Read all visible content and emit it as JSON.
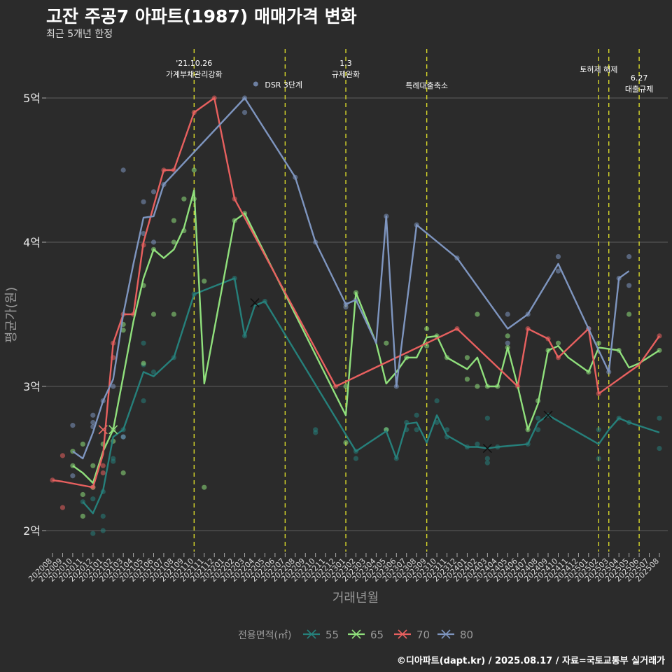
{
  "title": "고잔 주공7 아파트(1987) 매매가격 변화",
  "subtitle": "최근 5개년 한정",
  "caption": "©디아파트(dapt.kr) / 2025.08.17 / 자료=국토교통부 실거래가",
  "colors": {
    "55": "#26807b",
    "65": "#90e07c",
    "70": "#e8605f",
    "80": "#7e95bf",
    "vline": "#d9d92a"
  },
  "chart_data": {
    "type": "line",
    "xlabel": "거래년월",
    "ylabel": "평균가(원)",
    "ylim": [
      1.85,
      5.25
    ],
    "yticks": [
      {
        "v": 2,
        "label": "2억"
      },
      {
        "v": 3,
        "label": "3억"
      },
      {
        "v": 4,
        "label": "4억"
      },
      {
        "v": 5,
        "label": "5억"
      }
    ],
    "x_labels": [
      "202008",
      "202009",
      "202010",
      "202011",
      "202012",
      "202101",
      "202102",
      "202103",
      "202104",
      "202105",
      "202106",
      "202107",
      "202108",
      "202109",
      "202110",
      "202111",
      "202112",
      "202201",
      "202202",
      "202203",
      "202204",
      "202205",
      "202206",
      "202207",
      "202208",
      "202209",
      "202210",
      "202211",
      "202212",
      "202301",
      "202302",
      "202303",
      "202304",
      "202305",
      "202306",
      "202307",
      "202308",
      "202309",
      "202310",
      "202311",
      "202312",
      "202401",
      "202402",
      "202403",
      "202404",
      "202405",
      "202406",
      "202407",
      "202408",
      "202409",
      "202410",
      "202411",
      "202412",
      "202501",
      "202502",
      "202503",
      "202504",
      "202505",
      "202506",
      "202507",
      "202508"
    ],
    "legend_title": "전용면적(㎡)",
    "legend_position": "bottom",
    "series": [
      {
        "name": "55",
        "color_key": "55",
        "points": [
          [
            3,
            2.2
          ],
          [
            4,
            2.12
          ],
          [
            5,
            2.28
          ],
          [
            6,
            2.65
          ],
          [
            7,
            2.7
          ],
          [
            9,
            3.1
          ],
          [
            10,
            3.07
          ],
          [
            12,
            3.2
          ],
          [
            14,
            3.64
          ],
          [
            18,
            3.75
          ],
          [
            19,
            3.35
          ],
          [
            20,
            3.56
          ],
          [
            21,
            3.59
          ],
          [
            30,
            2.55
          ],
          [
            33,
            2.69
          ],
          [
            34,
            2.5
          ],
          [
            35,
            2.74
          ],
          [
            36,
            2.75
          ],
          [
            37,
            2.61
          ],
          [
            38,
            2.8
          ],
          [
            39,
            2.66
          ],
          [
            41,
            2.58
          ],
          [
            42,
            2.58
          ],
          [
            43,
            2.57
          ],
          [
            44,
            2.58
          ],
          [
            47,
            2.6
          ],
          [
            48,
            2.75
          ],
          [
            49,
            2.8
          ],
          [
            54,
            2.6
          ],
          [
            55,
            2.7
          ],
          [
            56,
            2.78
          ],
          [
            57,
            2.75
          ],
          [
            60,
            2.68
          ]
        ],
        "dots": [
          [
            3,
            2.2
          ],
          [
            4,
            2.22
          ],
          [
            4,
            1.98
          ],
          [
            5,
            2.27
          ],
          [
            5,
            2.0
          ],
          [
            5,
            2.1
          ],
          [
            6,
            2.48
          ],
          [
            6,
            2.5
          ],
          [
            7,
            2.7
          ],
          [
            7,
            2.65
          ],
          [
            9,
            3.15
          ],
          [
            9,
            3.3
          ],
          [
            9,
            2.9
          ],
          [
            10,
            3.1
          ],
          [
            12,
            3.2
          ],
          [
            14,
            3.64
          ],
          [
            18,
            3.75
          ],
          [
            19,
            3.35
          ],
          [
            21,
            3.59
          ],
          [
            26,
            2.7
          ],
          [
            26,
            2.68
          ],
          [
            30,
            2.5
          ],
          [
            30,
            2.55
          ],
          [
            33,
            2.7
          ],
          [
            34,
            2.5
          ],
          [
            35,
            2.75
          ],
          [
            35,
            2.7
          ],
          [
            36,
            2.8
          ],
          [
            36,
            2.7
          ],
          [
            38,
            2.9
          ],
          [
            38,
            2.75
          ],
          [
            39,
            2.65
          ],
          [
            39,
            2.7
          ],
          [
            41,
            2.58
          ],
          [
            42,
            2.6
          ],
          [
            43,
            2.5
          ],
          [
            43,
            2.47
          ],
          [
            43,
            2.78
          ],
          [
            44,
            2.58
          ],
          [
            47,
            2.6
          ],
          [
            48,
            2.7
          ],
          [
            48,
            2.78
          ],
          [
            49,
            2.8
          ],
          [
            54,
            2.7
          ],
          [
            54,
            2.5
          ],
          [
            56,
            2.78
          ],
          [
            57,
            2.75
          ],
          [
            60,
            2.78
          ],
          [
            60,
            2.57
          ]
        ],
        "markers": [
          [
            20,
            3.58
          ],
          [
            43,
            2.57
          ],
          [
            49,
            2.8
          ]
        ]
      },
      {
        "name": "65",
        "color_key": "65",
        "points": [
          [
            2,
            2.45
          ],
          [
            3,
            2.4
          ],
          [
            4,
            2.33
          ],
          [
            5,
            2.55
          ],
          [
            6,
            2.7
          ],
          [
            7,
            3.07
          ],
          [
            8,
            3.45
          ],
          [
            9,
            3.75
          ],
          [
            10,
            3.95
          ],
          [
            11,
            3.89
          ],
          [
            12,
            3.95
          ],
          [
            13,
            4.1
          ],
          [
            14,
            4.36
          ],
          [
            15,
            3.02
          ],
          [
            18,
            4.15
          ],
          [
            19,
            4.2
          ],
          [
            29,
            2.8
          ],
          [
            30,
            3.65
          ],
          [
            32,
            3.3
          ],
          [
            33,
            3.02
          ],
          [
            34,
            3.1
          ],
          [
            35,
            3.2
          ],
          [
            36,
            3.2
          ],
          [
            37,
            3.34
          ],
          [
            38,
            3.35
          ],
          [
            39,
            3.2
          ],
          [
            41,
            3.12
          ],
          [
            42,
            3.2
          ],
          [
            43,
            3.0
          ],
          [
            44,
            3.0
          ],
          [
            45,
            3.27
          ],
          [
            46,
            3.0
          ],
          [
            47,
            2.7
          ],
          [
            48,
            2.88
          ],
          [
            49,
            3.25
          ],
          [
            50,
            3.28
          ],
          [
            51,
            3.2
          ],
          [
            53,
            3.1
          ],
          [
            54,
            3.27
          ],
          [
            56,
            3.25
          ],
          [
            57,
            3.13
          ],
          [
            58,
            3.16
          ],
          [
            60,
            3.25
          ]
        ],
        "dots": [
          [
            2,
            2.55
          ],
          [
            2,
            2.45
          ],
          [
            3,
            2.6
          ],
          [
            3,
            2.25
          ],
          [
            3,
            2.1
          ],
          [
            4,
            2.3
          ],
          [
            4,
            2.45
          ],
          [
            5,
            2.6
          ],
          [
            6,
            2.7
          ],
          [
            6,
            2.62
          ],
          [
            7,
            3.43
          ],
          [
            7,
            3.39
          ],
          [
            7,
            2.4
          ],
          [
            9,
            3.7
          ],
          [
            9,
            3.16
          ],
          [
            10,
            3.95
          ],
          [
            10,
            3.5
          ],
          [
            12,
            4.15
          ],
          [
            12,
            4.0
          ],
          [
            12,
            3.5
          ],
          [
            13,
            4.3
          ],
          [
            13,
            4.08
          ],
          [
            14,
            4.5
          ],
          [
            14,
            4.3
          ],
          [
            15,
            3.73
          ],
          [
            15,
            2.3
          ],
          [
            18,
            4.15
          ],
          [
            19,
            4.2
          ],
          [
            29,
            3.0
          ],
          [
            29,
            2.61
          ],
          [
            30,
            3.65
          ],
          [
            33,
            3.3
          ],
          [
            33,
            2.7
          ],
          [
            35,
            3.2
          ],
          [
            37,
            3.4
          ],
          [
            37,
            3.28
          ],
          [
            38,
            3.35
          ],
          [
            39,
            3.2
          ],
          [
            41,
            3.2
          ],
          [
            41,
            3.05
          ],
          [
            42,
            3.5
          ],
          [
            42,
            3.0
          ],
          [
            43,
            3.0
          ],
          [
            44,
            3.0
          ],
          [
            45,
            3.27
          ],
          [
            45,
            3.35
          ],
          [
            47,
            2.7
          ],
          [
            48,
            2.9
          ],
          [
            49,
            3.25
          ],
          [
            50,
            3.3
          ],
          [
            53,
            3.1
          ],
          [
            54,
            3.3
          ],
          [
            56,
            3.25
          ],
          [
            57,
            3.5
          ],
          [
            60,
            3.25
          ]
        ],
        "markers": [
          [
            5,
            2.7
          ],
          [
            6,
            2.7
          ]
        ]
      },
      {
        "name": "70",
        "color_key": "70",
        "points": [
          [
            0,
            2.35
          ],
          [
            1,
            2.34
          ],
          [
            4,
            2.3
          ],
          [
            5,
            2.53
          ],
          [
            6,
            3.3
          ],
          [
            7,
            3.5
          ],
          [
            8,
            3.5
          ],
          [
            9,
            4.0
          ],
          [
            11,
            4.5
          ],
          [
            12,
            4.5
          ],
          [
            14,
            4.9
          ],
          [
            16,
            5.0
          ],
          [
            18,
            4.3
          ],
          [
            28,
            3.0
          ],
          [
            40,
            3.4
          ],
          [
            46,
            3.0
          ],
          [
            47,
            3.4
          ],
          [
            49,
            3.33
          ],
          [
            50,
            3.2
          ],
          [
            53,
            3.4
          ],
          [
            54,
            2.95
          ],
          [
            58,
            3.15
          ],
          [
            60,
            3.35
          ]
        ],
        "dots": [
          [
            0,
            2.35
          ],
          [
            1,
            2.52
          ],
          [
            1,
            2.16
          ],
          [
            4,
            2.3
          ],
          [
            5,
            2.45
          ],
          [
            5,
            2.4
          ],
          [
            6,
            3.3
          ],
          [
            6,
            3.2
          ],
          [
            7,
            3.5
          ],
          [
            8,
            3.5
          ],
          [
            9,
            3.98
          ],
          [
            11,
            4.5
          ],
          [
            12,
            4.5
          ],
          [
            14,
            4.9
          ],
          [
            16,
            5.0
          ],
          [
            18,
            4.3
          ],
          [
            28,
            3.0
          ],
          [
            40,
            3.4
          ],
          [
            46,
            3.0
          ],
          [
            47,
            3.4
          ],
          [
            49,
            3.33
          ],
          [
            50,
            3.2
          ],
          [
            53,
            3.4
          ],
          [
            54,
            2.95
          ],
          [
            60,
            3.35
          ]
        ],
        "markers": [
          [
            5,
            2.7
          ]
        ]
      },
      {
        "name": "80",
        "color_key": "80",
        "points": [
          [
            2,
            2.55
          ],
          [
            3,
            2.5
          ],
          [
            4,
            2.68
          ],
          [
            5,
            2.9
          ],
          [
            6,
            3.05
          ],
          [
            7,
            3.5
          ],
          [
            8,
            3.85
          ],
          [
            9,
            4.17
          ],
          [
            10,
            4.18
          ],
          [
            11,
            4.4
          ],
          [
            19,
            5.0
          ],
          [
            24,
            4.45
          ],
          [
            26,
            4.0
          ],
          [
            29,
            3.57
          ],
          [
            30,
            3.6
          ],
          [
            32,
            3.3
          ],
          [
            33,
            4.18
          ],
          [
            34,
            3.0
          ],
          [
            36,
            4.12
          ],
          [
            40,
            3.89
          ],
          [
            45,
            3.4
          ],
          [
            47,
            3.5
          ],
          [
            50,
            3.85
          ],
          [
            53,
            3.4
          ],
          [
            55,
            3.1
          ],
          [
            56,
            3.75
          ],
          [
            57,
            3.8
          ]
        ],
        "dots": [
          [
            2,
            2.73
          ],
          [
            2,
            2.38
          ],
          [
            4,
            2.75
          ],
          [
            4,
            2.8
          ],
          [
            4,
            2.72
          ],
          [
            5,
            2.9
          ],
          [
            6,
            3.0
          ],
          [
            7,
            4.5
          ],
          [
            7,
            2.65
          ],
          [
            9,
            4.28
          ],
          [
            9,
            4.06
          ],
          [
            10,
            4.35
          ],
          [
            10,
            4.0
          ],
          [
            11,
            4.4
          ],
          [
            19,
            5.0
          ],
          [
            19,
            4.9
          ],
          [
            24,
            4.45
          ],
          [
            26,
            4.0
          ],
          [
            29,
            3.57
          ],
          [
            29,
            3.55
          ],
          [
            30,
            3.6
          ],
          [
            33,
            4.18
          ],
          [
            34,
            3.0
          ],
          [
            36,
            4.12
          ],
          [
            40,
            3.89
          ],
          [
            45,
            3.5
          ],
          [
            45,
            3.3
          ],
          [
            47,
            3.5
          ],
          [
            50,
            3.9
          ],
          [
            50,
            3.8
          ],
          [
            53,
            3.4
          ],
          [
            55,
            3.1
          ],
          [
            56,
            3.75
          ],
          [
            57,
            3.9
          ],
          [
            57,
            3.7
          ]
        ],
        "markers": []
      }
    ],
    "events": [
      {
        "x": 14,
        "text": "'21.10.26\n가계부채관리강화",
        "dot": false
      },
      {
        "x": 23,
        "text": "DSR 3단계",
        "dot": true
      },
      {
        "x": 29,
        "text": "1.3\n규제완화",
        "dot": false
      },
      {
        "x": 37,
        "text": "특례대출축소",
        "dot": false
      },
      {
        "x": 54,
        "text": "토허제 해제",
        "dot": false
      },
      {
        "x": 55,
        "text": "",
        "dot": false
      },
      {
        "x": 58,
        "text": "6.27\n대출규제",
        "dot": false
      }
    ]
  }
}
